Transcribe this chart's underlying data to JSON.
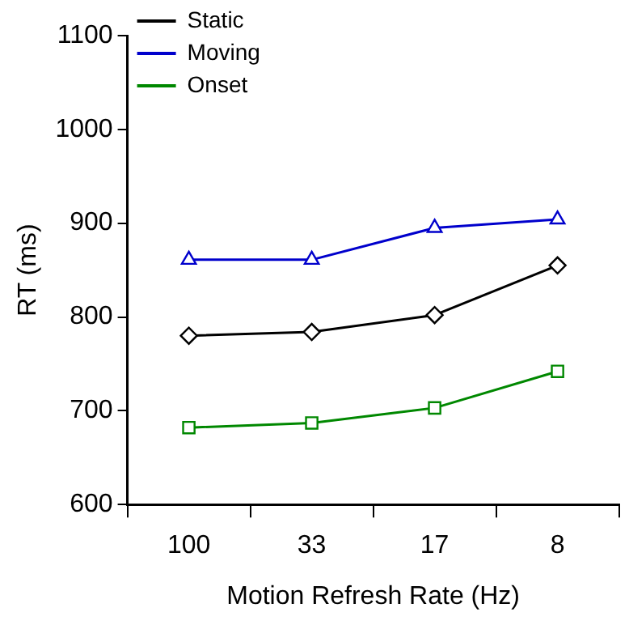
{
  "chart_data": {
    "type": "line",
    "xlabel": "Motion Refresh Rate (Hz)",
    "ylabel": "RT (ms)",
    "categories": [
      "100",
      "33",
      "17",
      "8"
    ],
    "series": [
      {
        "name": "Static",
        "color": "#000000",
        "marker": "diamond",
        "values": [
          780,
          784,
          802,
          855
        ]
      },
      {
        "name": "Moving",
        "color": "#0000cc",
        "marker": "triangle",
        "values": [
          861,
          861,
          895,
          904
        ]
      },
      {
        "name": "Onset",
        "color": "#008800",
        "marker": "square",
        "values": [
          682,
          687,
          703,
          742
        ]
      }
    ],
    "ylim": [
      600,
      1100
    ],
    "yticks": [
      600,
      700,
      800,
      900,
      1000,
      1100
    ],
    "grid": false,
    "legend": "top left"
  }
}
